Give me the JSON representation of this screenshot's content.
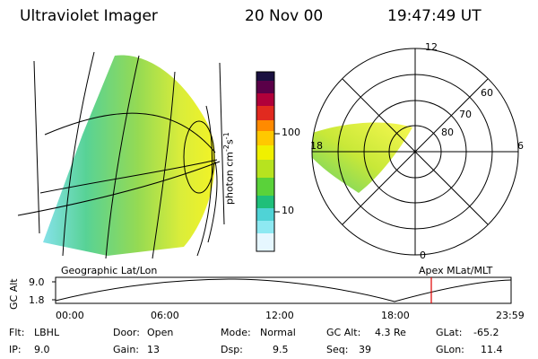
{
  "header": {
    "instrument": "Ultraviolet Imager",
    "date": "20 Nov 00",
    "time": "19:47:49 UT"
  },
  "colorbar": {
    "unit_label": "photon cm",
    "unit_exp1": "-2",
    "unit_s": "s",
    "unit_exp2": "-1",
    "tick_high": "100",
    "tick_low": "10",
    "colors": [
      "#e6f7ff",
      "#8ee9f2",
      "#4fd3d6",
      "#1fbf7a",
      "#5ad23a",
      "#b7e31f",
      "#f0f000",
      "#ffc800",
      "#ff8a00",
      "#e12a1f",
      "#b0003a",
      "#5a0048",
      "#101030"
    ]
  },
  "polar": {
    "lat_labels": [
      "60",
      "70",
      "80"
    ],
    "mlt_labels": [
      "12",
      "18",
      "6",
      "0"
    ]
  },
  "timeline": {
    "left_title": "Geographic Lat/Lon",
    "right_title": "Apex MLat/MLT",
    "y_label": "GC Alt",
    "y_ticks": [
      "9.0",
      "1.8"
    ],
    "x_ticks": [
      "00:00",
      "06:00",
      "12:00",
      "18:00",
      "23:59"
    ],
    "marker_color": "#e00000"
  },
  "status": {
    "flt_label": "Flt:",
    "flt_value": "LBHL",
    "ip_label": "IP:",
    "ip_value": "9.0",
    "door_label": "Door:",
    "door_value": "Open",
    "gain_label": "Gain:",
    "gain_value": "13",
    "mode_label": "Mode:",
    "mode_value": "Normal",
    "dsp_label": "Dsp:",
    "dsp_value": "9.5",
    "gcalt_label": "GC Alt:",
    "gcalt_value": "4.3 Re",
    "seq_label": "Seq:",
    "seq_value": "39",
    "glat_label": "GLat:",
    "glat_value": "-65.2",
    "glon_label": "GLon:",
    "glon_value": "11.4"
  }
}
